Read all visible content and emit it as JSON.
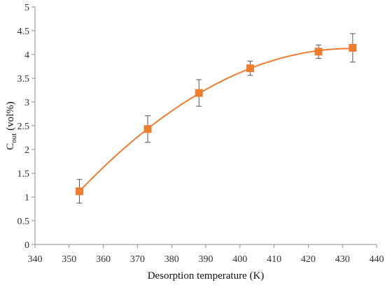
{
  "chart_data": {
    "type": "scatter",
    "title": "",
    "xlabel": "Desorption temperature (K)",
    "ylabel": {
      "main": "C",
      "subscript": "out",
      "suffix": " (vol%)"
    },
    "xlim": [
      340,
      440
    ],
    "ylim": [
      0,
      5
    ],
    "xticks": [
      "340",
      "350",
      "360",
      "370",
      "380",
      "390",
      "400",
      "410",
      "420",
      "430",
      "440"
    ],
    "yticks": [
      "0",
      "0.5",
      "1",
      "1.5",
      "2",
      "2.5",
      "3",
      "3.5",
      "4",
      "4.5",
      "5"
    ],
    "grid": false,
    "legend": "none",
    "marker_color": "#ED7D31",
    "series": [
      {
        "x": [
          353,
          373,
          388,
          403,
          423,
          433
        ],
        "y": [
          1.12,
          2.43,
          3.19,
          3.71,
          4.06,
          4.14
        ],
        "error": [
          0.25,
          0.28,
          0.28,
          0.15,
          0.14,
          0.3
        ],
        "trendline": "polynomial"
      }
    ]
  }
}
